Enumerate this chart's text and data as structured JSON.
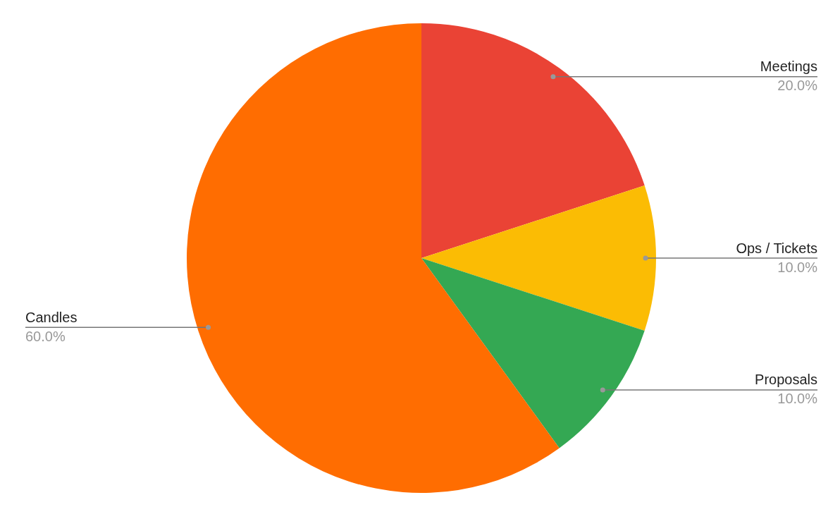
{
  "chart_data": {
    "type": "pie",
    "categories": [
      "Meetings",
      "Ops / Tickets",
      "Proposals",
      "Candles"
    ],
    "values": [
      20,
      10,
      10,
      60
    ],
    "value_labels": [
      "20.0%",
      "10.0%",
      "10.0%",
      "60.0%"
    ],
    "colors": [
      "#ea4335",
      "#fbbc04",
      "#34a853",
      "#ff6d01"
    ],
    "legend": false
  }
}
